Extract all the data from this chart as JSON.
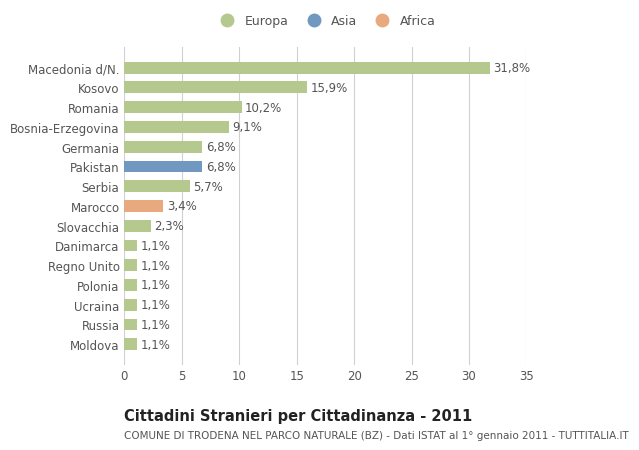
{
  "categories": [
    "Moldova",
    "Russia",
    "Ucraina",
    "Polonia",
    "Regno Unito",
    "Danimarca",
    "Slovacchia",
    "Marocco",
    "Serbia",
    "Pakistan",
    "Germania",
    "Bosnia-Erzegovina",
    "Romania",
    "Kosovo",
    "Macedonia d/N."
  ],
  "values": [
    1.1,
    1.1,
    1.1,
    1.1,
    1.1,
    1.1,
    2.3,
    3.4,
    5.7,
    6.8,
    6.8,
    9.1,
    10.2,
    15.9,
    31.8
  ],
  "labels": [
    "1,1%",
    "1,1%",
    "1,1%",
    "1,1%",
    "1,1%",
    "1,1%",
    "2,3%",
    "3,4%",
    "5,7%",
    "6,8%",
    "6,8%",
    "9,1%",
    "10,2%",
    "15,9%",
    "31,8%"
  ],
  "colors": [
    "#b5c98e",
    "#b5c98e",
    "#b5c98e",
    "#b5c98e",
    "#b5c98e",
    "#b5c98e",
    "#b5c98e",
    "#e8a97e",
    "#b5c98e",
    "#7098c0",
    "#b5c98e",
    "#b5c98e",
    "#b5c98e",
    "#b5c98e",
    "#b5c98e"
  ],
  "legend_entries": [
    {
      "label": "Europa",
      "color": "#b5c98e"
    },
    {
      "label": "Asia",
      "color": "#7098c0"
    },
    {
      "label": "Africa",
      "color": "#e8a97e"
    }
  ],
  "title": "Cittadini Stranieri per Cittadinanza - 2011",
  "subtitle": "COMUNE DI TRODENA NEL PARCO NATURALE (BZ) - Dati ISTAT al 1° gennaio 2011 - TUTTITALIA.IT",
  "xlim": [
    0,
    35
  ],
  "xticks": [
    0,
    5,
    10,
    15,
    20,
    25,
    30,
    35
  ],
  "background_color": "#ffffff",
  "grid_color": "#d0d0d0",
  "bar_height": 0.6,
  "text_color": "#555555",
  "label_fontsize": 8.5,
  "title_fontsize": 10.5,
  "subtitle_fontsize": 7.5
}
